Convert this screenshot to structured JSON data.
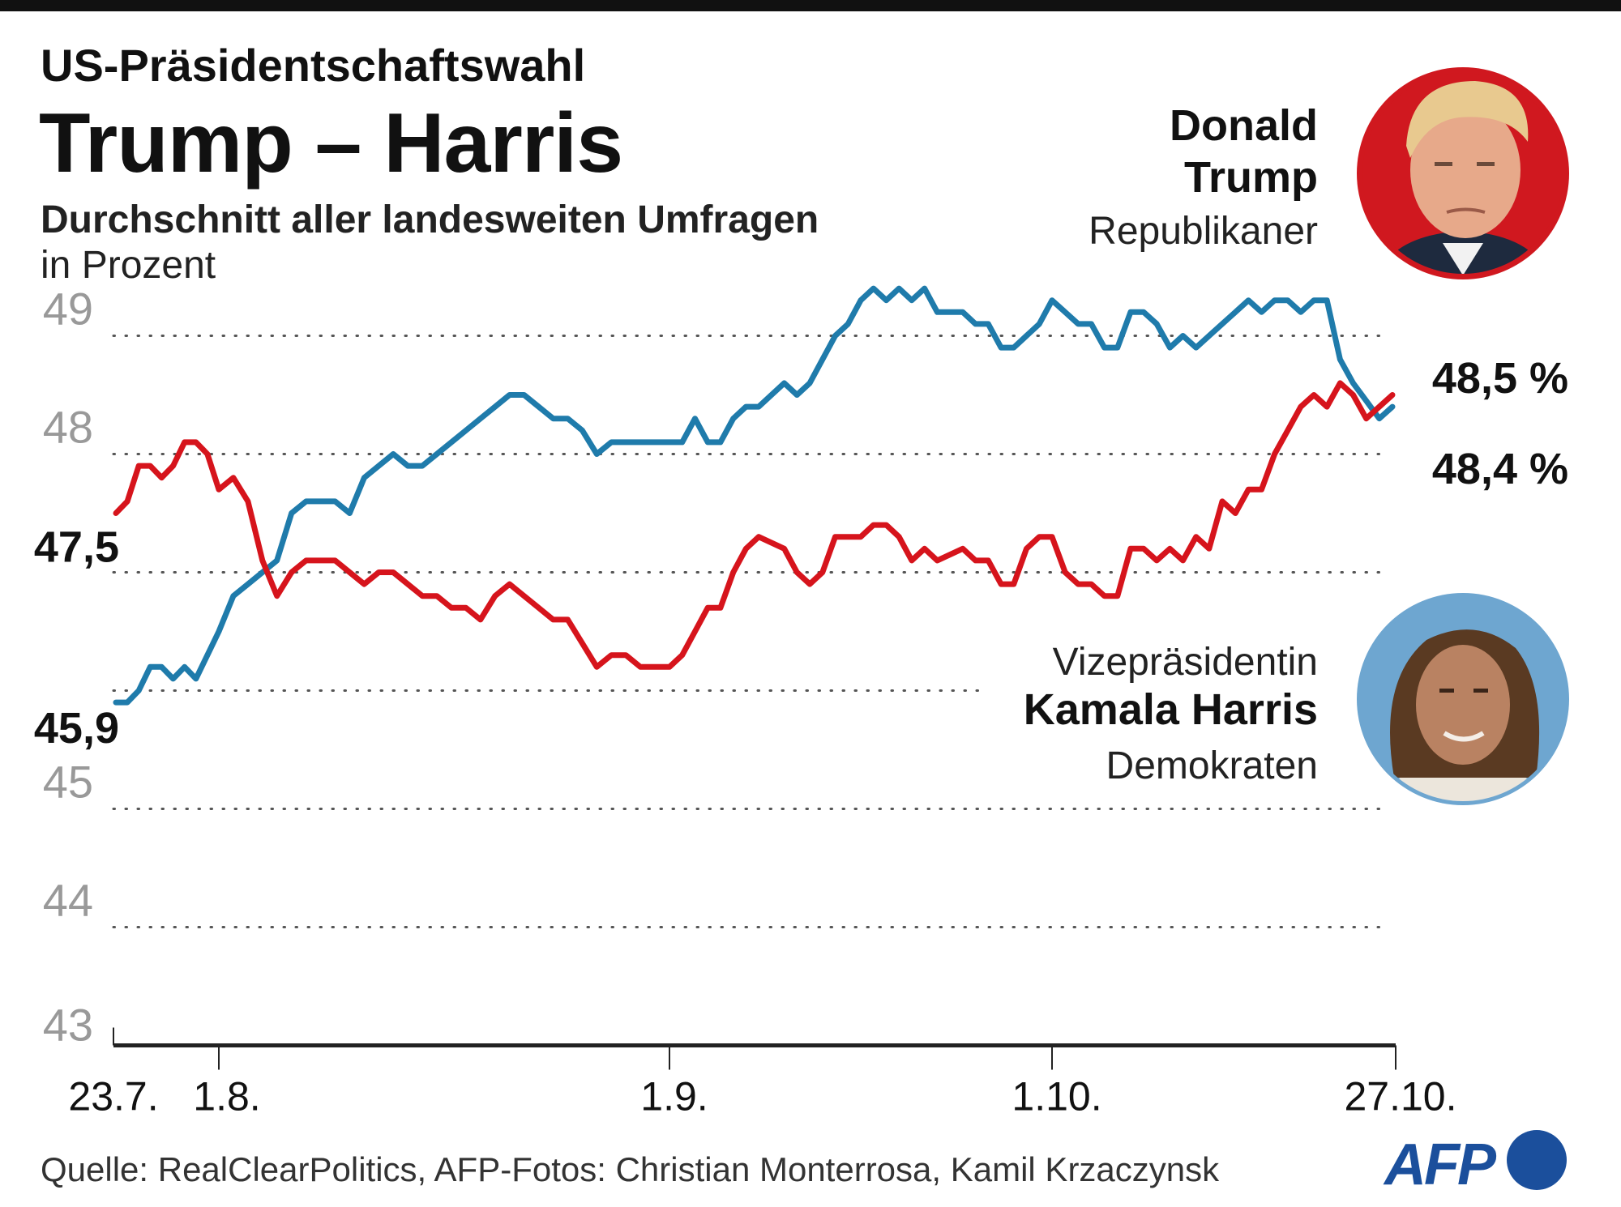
{
  "header": {
    "kicker": "US-Präsidentschaftswahl",
    "title": "Trump – Harris",
    "subtitle": "Durchschnitt aller landesweiten Umfragen",
    "unit": "in Prozent"
  },
  "candidates": {
    "trump": {
      "first": "Donald",
      "last": "Trump",
      "party": "Republikaner",
      "latest": "48,5 %",
      "photo": "trump-portrait",
      "ring_color": "#d0181f"
    },
    "harris": {
      "role": "Vizepräsidentin",
      "name": "Kamala Harris",
      "party": "Demokraten",
      "latest": "48,4 %",
      "photo": "harris-portrait",
      "ring_color": "#6ea6d0"
    }
  },
  "chart_data": {
    "type": "line",
    "title": "",
    "xlabel": "",
    "ylabel": "in Prozent",
    "ylim": [
      43,
      49
    ],
    "grid": true,
    "y_ticks": [
      43,
      44,
      45,
      46,
      47,
      48,
      49
    ],
    "y_tick_labels": [
      {
        "value": 49,
        "label": "49",
        "style": "grey"
      },
      {
        "value": 48,
        "label": "48",
        "style": "grey"
      },
      {
        "value": 45,
        "label": "45",
        "style": "grey"
      },
      {
        "value": 44,
        "label": "44",
        "style": "grey"
      },
      {
        "value": 43,
        "label": "43",
        "style": "grey"
      },
      {
        "value": 47.5,
        "label": "47,5",
        "style": "start-value"
      },
      {
        "value": 45.9,
        "label": "45,9",
        "style": "start-value"
      }
    ],
    "x_ticks": [
      "23.7.",
      "1.8.",
      "1.9.",
      "1.10.",
      "27.10."
    ],
    "x": [
      "23.7.",
      "24.7.",
      "25.7.",
      "26.7.",
      "27.7.",
      "28.7.",
      "29.7.",
      "30.7.",
      "31.7.",
      "1.8.",
      "2.8.",
      "3.8.",
      "4.8.",
      "5.8.",
      "6.8.",
      "7.8.",
      "8.8.",
      "9.8.",
      "10.8.",
      "11.8.",
      "12.8.",
      "13.8.",
      "14.8.",
      "15.8.",
      "16.8.",
      "17.8.",
      "18.8.",
      "19.8.",
      "20.8.",
      "21.8.",
      "22.8.",
      "23.8.",
      "24.8.",
      "25.8.",
      "26.8.",
      "27.8.",
      "28.8.",
      "29.8.",
      "30.8.",
      "31.8.",
      "1.9.",
      "2.9.",
      "3.9.",
      "4.9.",
      "5.9.",
      "6.9.",
      "7.9.",
      "8.9.",
      "10.9.",
      "11.9.",
      "12.9.",
      "13.9.",
      "14.9.",
      "15.9.",
      "16.9.",
      "17.9.",
      "18.9.",
      "19.9.",
      "20.9.",
      "21.9.",
      "22.9.",
      "24.9.",
      "25.9.",
      "26.9.",
      "27.9.",
      "28.9.",
      "29.9.",
      "30.9.",
      "1.10.",
      "2.10.",
      "3.10.",
      "4.10.",
      "5.10.",
      "6.10.",
      "7.10.",
      "8.10.",
      "9.10.",
      "10.10.",
      "11.10.",
      "12.10.",
      "13.10.",
      "14.10.",
      "15.10.",
      "16.10.",
      "17.10.",
      "18.10.",
      "19.10.",
      "20.10.",
      "21.10.",
      "22.10.",
      "23.10.",
      "24.10.",
      "25.10.",
      "26.10.",
      "27.10."
    ],
    "series": [
      {
        "name": "Donald Trump",
        "color": "#d6141c",
        "values": [
          47.5,
          47.6,
          47.9,
          47.9,
          47.8,
          47.9,
          48.1,
          48.1,
          48.0,
          47.7,
          47.8,
          47.6,
          47.1,
          46.8,
          47.0,
          47.1,
          47.1,
          47.1,
          47.0,
          46.9,
          47.0,
          47.0,
          46.9,
          46.8,
          46.8,
          46.7,
          46.7,
          46.6,
          46.8,
          46.9,
          46.8,
          46.7,
          46.6,
          46.6,
          46.4,
          46.2,
          46.3,
          46.3,
          46.2,
          46.2,
          46.2,
          46.3,
          46.5,
          46.7,
          46.7,
          47.0,
          47.2,
          47.3,
          47.2,
          47.0,
          46.9,
          47.0,
          47.3,
          47.3,
          47.3,
          47.4,
          47.4,
          47.3,
          47.1,
          47.2,
          47.1,
          47.2,
          47.1,
          47.1,
          46.9,
          46.9,
          47.2,
          47.3,
          47.3,
          47.0,
          46.9,
          46.9,
          46.8,
          46.8,
          47.2,
          47.2,
          47.1,
          47.2,
          47.1,
          47.3,
          47.2,
          47.6,
          47.5,
          47.7,
          47.7,
          48.0,
          48.2,
          48.4,
          48.5,
          48.4,
          48.6,
          48.5,
          48.3,
          48.4,
          48.5
        ]
      },
      {
        "name": "Kamala Harris",
        "color": "#1f7bab",
        "values": [
          45.9,
          45.9,
          46.0,
          46.2,
          46.2,
          46.1,
          46.2,
          46.1,
          46.3,
          46.5,
          46.8,
          46.9,
          47.0,
          47.1,
          47.5,
          47.6,
          47.6,
          47.6,
          47.5,
          47.8,
          47.9,
          48.0,
          47.9,
          47.9,
          48.0,
          48.1,
          48.2,
          48.3,
          48.4,
          48.5,
          48.5,
          48.4,
          48.3,
          48.3,
          48.2,
          48.0,
          48.1,
          48.1,
          48.1,
          48.1,
          48.1,
          48.1,
          48.3,
          48.1,
          48.1,
          48.3,
          48.4,
          48.4,
          48.6,
          48.5,
          48.6,
          48.8,
          49.0,
          49.1,
          49.3,
          49.4,
          49.3,
          49.4,
          49.3,
          49.4,
          49.2,
          49.2,
          49.1,
          49.1,
          48.9,
          48.9,
          49.0,
          49.1,
          49.3,
          49.2,
          49.1,
          49.1,
          48.9,
          48.9,
          49.2,
          49.2,
          49.1,
          48.9,
          49.0,
          48.9,
          49.0,
          49.1,
          49.2,
          49.3,
          49.2,
          49.3,
          49.3,
          49.2,
          49.3,
          49.3,
          48.8,
          48.6,
          48.45,
          48.3,
          48.4
        ]
      }
    ],
    "end_labels": [
      "48,5 %",
      "48,4 %"
    ],
    "legend": "direct labels right"
  },
  "footer": {
    "source": "Quelle: RealClearPolitics, AFP-Fotos: Christian Monterrosa, Kamil Krzaczynsk",
    "logo_text": "AFP",
    "logo_color": "#1b4f9c"
  }
}
